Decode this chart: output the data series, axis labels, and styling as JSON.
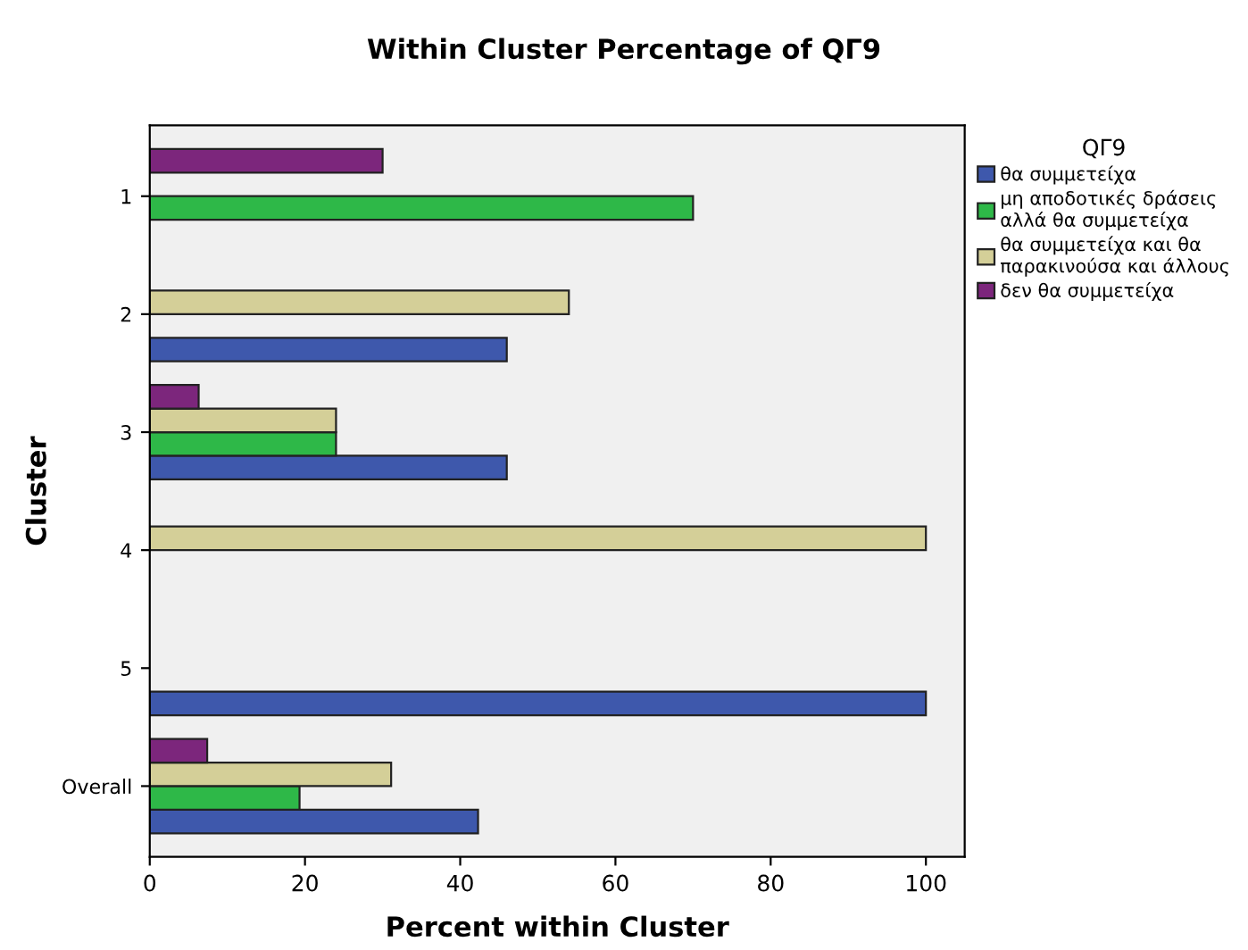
{
  "chart_data": {
    "type": "bar",
    "orientation": "horizontal",
    "title": "Within Cluster Percentage of QΓ9",
    "xlabel": "Percent within Cluster",
    "ylabel": "Cluster",
    "legend_title": "QΓ9",
    "legend": "right",
    "categories": [
      "1",
      "2",
      "3",
      "4",
      "5",
      "Overall"
    ],
    "series": [
      {
        "name": "θα συμμετείχα",
        "color": "#3e58ac",
        "values": [
          0,
          46,
          46,
          0,
          100,
          42.3
        ]
      },
      {
        "name": "μη αποδοτικές δράσεις\nαλλά θα συμμετείχα",
        "color": "#2eb848",
        "values": [
          70,
          0,
          24,
          0,
          0,
          19.3
        ]
      },
      {
        "name": "θα συμμετείχα και θα\nπαρακινούσα και άλλους",
        "color": "#d4cf98",
        "values": [
          0,
          54,
          24,
          100,
          0,
          31.1
        ]
      },
      {
        "name": "δεν θα συμμετείχα",
        "color": "#7c267c",
        "values": [
          30,
          0,
          6.3,
          0,
          0,
          7.4
        ]
      }
    ],
    "xlim": [
      0,
      105
    ],
    "xticks": [
      0,
      20,
      40,
      60,
      80,
      100
    ],
    "grid": false
  }
}
